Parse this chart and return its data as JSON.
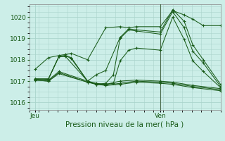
{
  "background_color": "#cceee8",
  "grid_color": "#aad4cc",
  "line_color": "#1a5c1a",
  "vline_color": "#4a6a4a",
  "ylabel_ticks": [
    1016,
    1017,
    1018,
    1019,
    1020
  ],
  "xlabel": "Pression niveau de la mer( hPa )",
  "xtick_labels": [
    "Jeu",
    "Ven"
  ],
  "xtick_positions": [
    0.03,
    0.685
  ],
  "ylim": [
    1015.65,
    1020.6
  ],
  "xlim": [
    0.0,
    1.0
  ],
  "vline_x": 0.685,
  "series": [
    [
      0.03,
      1017.55,
      0.1,
      1018.1,
      0.155,
      1018.2,
      0.19,
      1018.25,
      0.22,
      1018.3,
      0.305,
      1018.0,
      0.4,
      1019.5,
      0.475,
      1019.55,
      0.52,
      1019.5,
      0.56,
      1019.55,
      0.685,
      1019.55,
      0.75,
      1020.3,
      0.81,
      1020.1,
      0.855,
      1019.9,
      0.91,
      1019.6,
      1.0,
      1019.6
    ],
    [
      0.03,
      1017.1,
      0.1,
      1017.1,
      0.155,
      1018.15,
      0.19,
      1018.2,
      0.22,
      1018.1,
      0.305,
      1017.0,
      0.35,
      1017.3,
      0.4,
      1017.5,
      0.475,
      1019.05,
      0.52,
      1019.45,
      0.56,
      1019.4,
      0.685,
      1019.3,
      0.75,
      1020.35,
      0.81,
      1019.8,
      0.855,
      1018.7,
      0.91,
      1018.0,
      1.0,
      1016.85
    ],
    [
      0.03,
      1017.1,
      0.1,
      1017.1,
      0.155,
      1018.15,
      0.19,
      1018.2,
      0.22,
      1018.05,
      0.305,
      1017.0,
      0.35,
      1016.85,
      0.4,
      1016.9,
      0.44,
      1017.3,
      0.475,
      1019.0,
      0.52,
      1019.4,
      0.56,
      1019.35,
      0.685,
      1019.2,
      0.75,
      1020.25,
      0.81,
      1019.5,
      0.855,
      1018.4,
      0.91,
      1017.85,
      1.0,
      1016.75
    ],
    [
      0.03,
      1017.1,
      0.1,
      1017.1,
      0.155,
      1018.15,
      0.19,
      1018.15,
      0.305,
      1017.0,
      0.35,
      1016.85,
      0.4,
      1016.85,
      0.44,
      1016.9,
      0.475,
      1017.95,
      0.52,
      1018.45,
      0.56,
      1018.55,
      0.685,
      1018.45,
      0.75,
      1020.0,
      0.81,
      1018.95,
      0.855,
      1017.95,
      0.91,
      1017.45,
      1.0,
      1016.7
    ],
    [
      0.03,
      1017.1,
      0.1,
      1017.05,
      0.155,
      1017.45,
      0.305,
      1017.0,
      0.35,
      1016.9,
      0.4,
      1016.85,
      0.475,
      1017.0,
      0.56,
      1017.05,
      0.685,
      1017.0,
      0.75,
      1016.95,
      0.855,
      1016.8,
      1.0,
      1016.65
    ],
    [
      0.03,
      1017.05,
      0.1,
      1017.0,
      0.155,
      1017.4,
      0.305,
      1016.95,
      0.35,
      1016.85,
      0.4,
      1016.8,
      0.475,
      1016.9,
      0.56,
      1017.0,
      0.685,
      1016.95,
      0.75,
      1016.9,
      0.855,
      1016.75,
      1.0,
      1016.6
    ],
    [
      0.03,
      1017.05,
      0.1,
      1017.0,
      0.155,
      1017.35,
      0.305,
      1016.95,
      0.4,
      1016.8,
      0.475,
      1016.85,
      0.56,
      1016.95,
      0.685,
      1016.9,
      0.75,
      1016.85,
      0.855,
      1016.7,
      1.0,
      1016.55
    ]
  ]
}
